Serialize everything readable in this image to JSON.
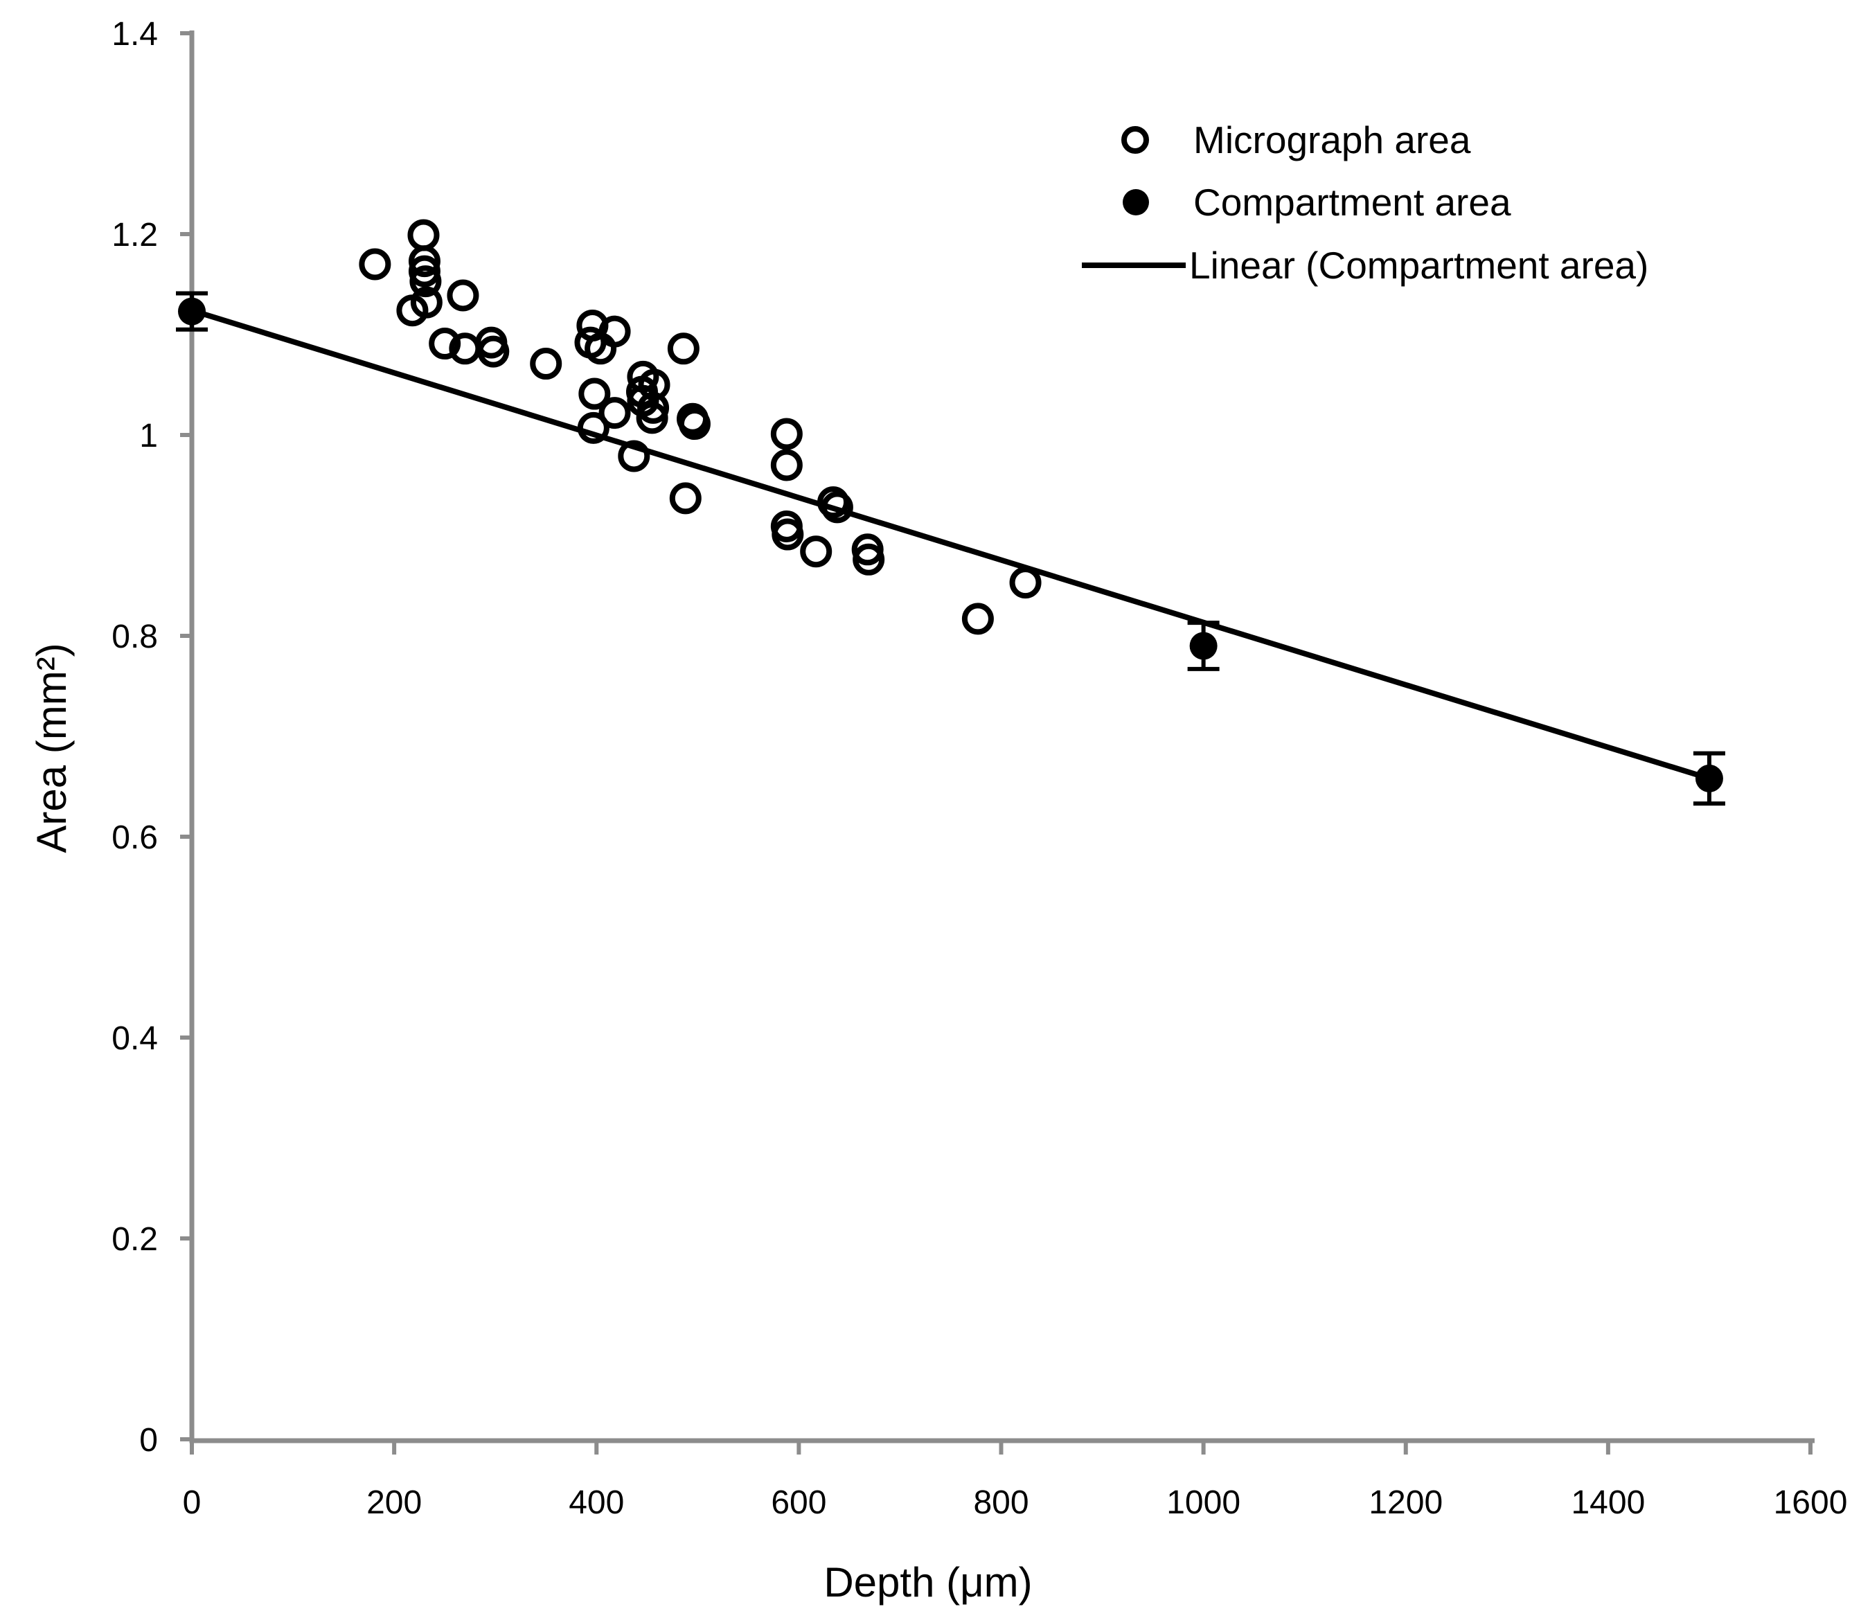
{
  "chart_data": {
    "type": "scatter",
    "title": "",
    "xlabel": "Depth (μm)",
    "ylabel": "Area (mm²)",
    "xlim": [
      0,
      1600
    ],
    "ylim": [
      0,
      1.4
    ],
    "grid": false,
    "legend_position": "upper-right-inside",
    "x_ticks": {
      "values": [
        0,
        200,
        400,
        600,
        800,
        1000,
        1200,
        1400,
        1600
      ],
      "labels": [
        "0",
        "200",
        "400",
        "600",
        "800",
        "1000",
        "1200",
        "1400",
        "1600"
      ]
    },
    "y_ticks": {
      "values": [
        0,
        0.2,
        0.4,
        0.6,
        0.8,
        1.0,
        1.2,
        1.4
      ],
      "labels": [
        "0",
        "0.2",
        "0.4",
        "0.6",
        "0.8",
        "1",
        "1.2",
        "1.4"
      ]
    },
    "series": [
      {
        "name": "Micrograph area",
        "type": "scatter",
        "marker": "open-circle",
        "color": "#000000",
        "points": [
          [
            181,
            1.17
          ],
          [
            229,
            1.199
          ],
          [
            230,
            1.173
          ],
          [
            230,
            1.163
          ],
          [
            231,
            1.153
          ],
          [
            232,
            1.132
          ],
          [
            218,
            1.124
          ],
          [
            268,
            1.139
          ],
          [
            250,
            1.091
          ],
          [
            270,
            1.086
          ],
          [
            296,
            1.092
          ],
          [
            298,
            1.083
          ],
          [
            350,
            1.071
          ],
          [
            396,
            1.109
          ],
          [
            418,
            1.103
          ],
          [
            394,
            1.092
          ],
          [
            404,
            1.086
          ],
          [
            486,
            1.086
          ],
          [
            398,
            1.041
          ],
          [
            418,
            1.022
          ],
          [
            397,
            1.007
          ],
          [
            446,
            1.058
          ],
          [
            457,
            1.05
          ],
          [
            445,
            1.043
          ],
          [
            446,
            1.034
          ],
          [
            456,
            1.027
          ],
          [
            455,
            1.017
          ],
          [
            495,
            1.016
          ],
          [
            497,
            1.011
          ],
          [
            437,
            0.979
          ],
          [
            488,
            0.937
          ],
          [
            588,
            1.001
          ],
          [
            588,
            0.97
          ],
          [
            634,
            0.933
          ],
          [
            638,
            0.928
          ],
          [
            588,
            0.909
          ],
          [
            589,
            0.901
          ],
          [
            617,
            0.884
          ],
          [
            668,
            0.886
          ],
          [
            669,
            0.876
          ],
          [
            824,
            0.853
          ],
          [
            777,
            0.817
          ]
        ]
      },
      {
        "name": "Compartment area",
        "type": "scatter",
        "marker": "filled-circle",
        "color": "#000000",
        "points": [
          [
            0,
            1.123
          ],
          [
            1000,
            0.79
          ],
          [
            1500,
            0.658
          ]
        ],
        "y_err": [
          0.018,
          0.023,
          0.025
        ]
      },
      {
        "name": "Linear (Compartment area)",
        "type": "line",
        "color": "#000000",
        "points": [
          [
            0,
            1.124
          ],
          [
            1500,
            0.658
          ]
        ]
      }
    ]
  },
  "colors": {
    "ink": "#000000",
    "axis": "#8c8c8c",
    "background": "#ffffff"
  }
}
